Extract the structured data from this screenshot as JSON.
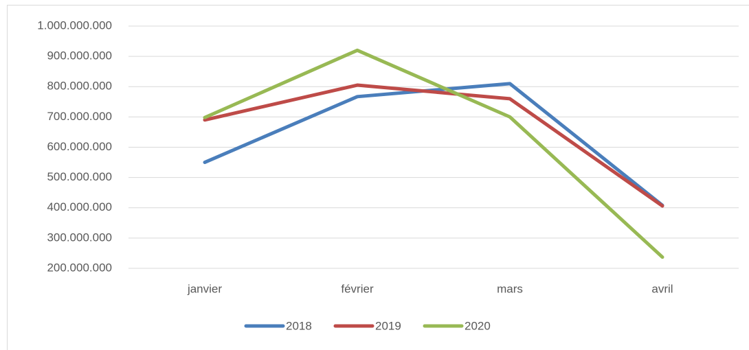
{
  "chart_data": {
    "type": "line",
    "categories": [
      "janvier",
      "février",
      "mars",
      "avril"
    ],
    "series": [
      {
        "name": "2018",
        "color": "#4a7ebb",
        "values": [
          550000000,
          767000000,
          810000000,
          408000000
        ]
      },
      {
        "name": "2019",
        "color": "#be4b48",
        "values": [
          690000000,
          805000000,
          760000000,
          406000000
        ]
      },
      {
        "name": "2020",
        "color": "#98b954",
        "values": [
          698000000,
          920000000,
          700000000,
          237000000
        ]
      }
    ],
    "ylim": [
      200000000,
      1000000000
    ],
    "yticks": [
      {
        "value": 200000000,
        "label": "200.000.000"
      },
      {
        "value": 300000000,
        "label": "300.000.000"
      },
      {
        "value": 400000000,
        "label": "400.000.000"
      },
      {
        "value": 500000000,
        "label": "500.000.000"
      },
      {
        "value": 600000000,
        "label": "600.000.000"
      },
      {
        "value": 700000000,
        "label": "700.000.000"
      },
      {
        "value": 800000000,
        "label": "800.000.000"
      },
      {
        "value": 900000000,
        "label": "900.000.000"
      },
      {
        "value": 1000000000,
        "label": "1.000.000.000"
      }
    ],
    "grid": true,
    "legend": "bottom"
  }
}
